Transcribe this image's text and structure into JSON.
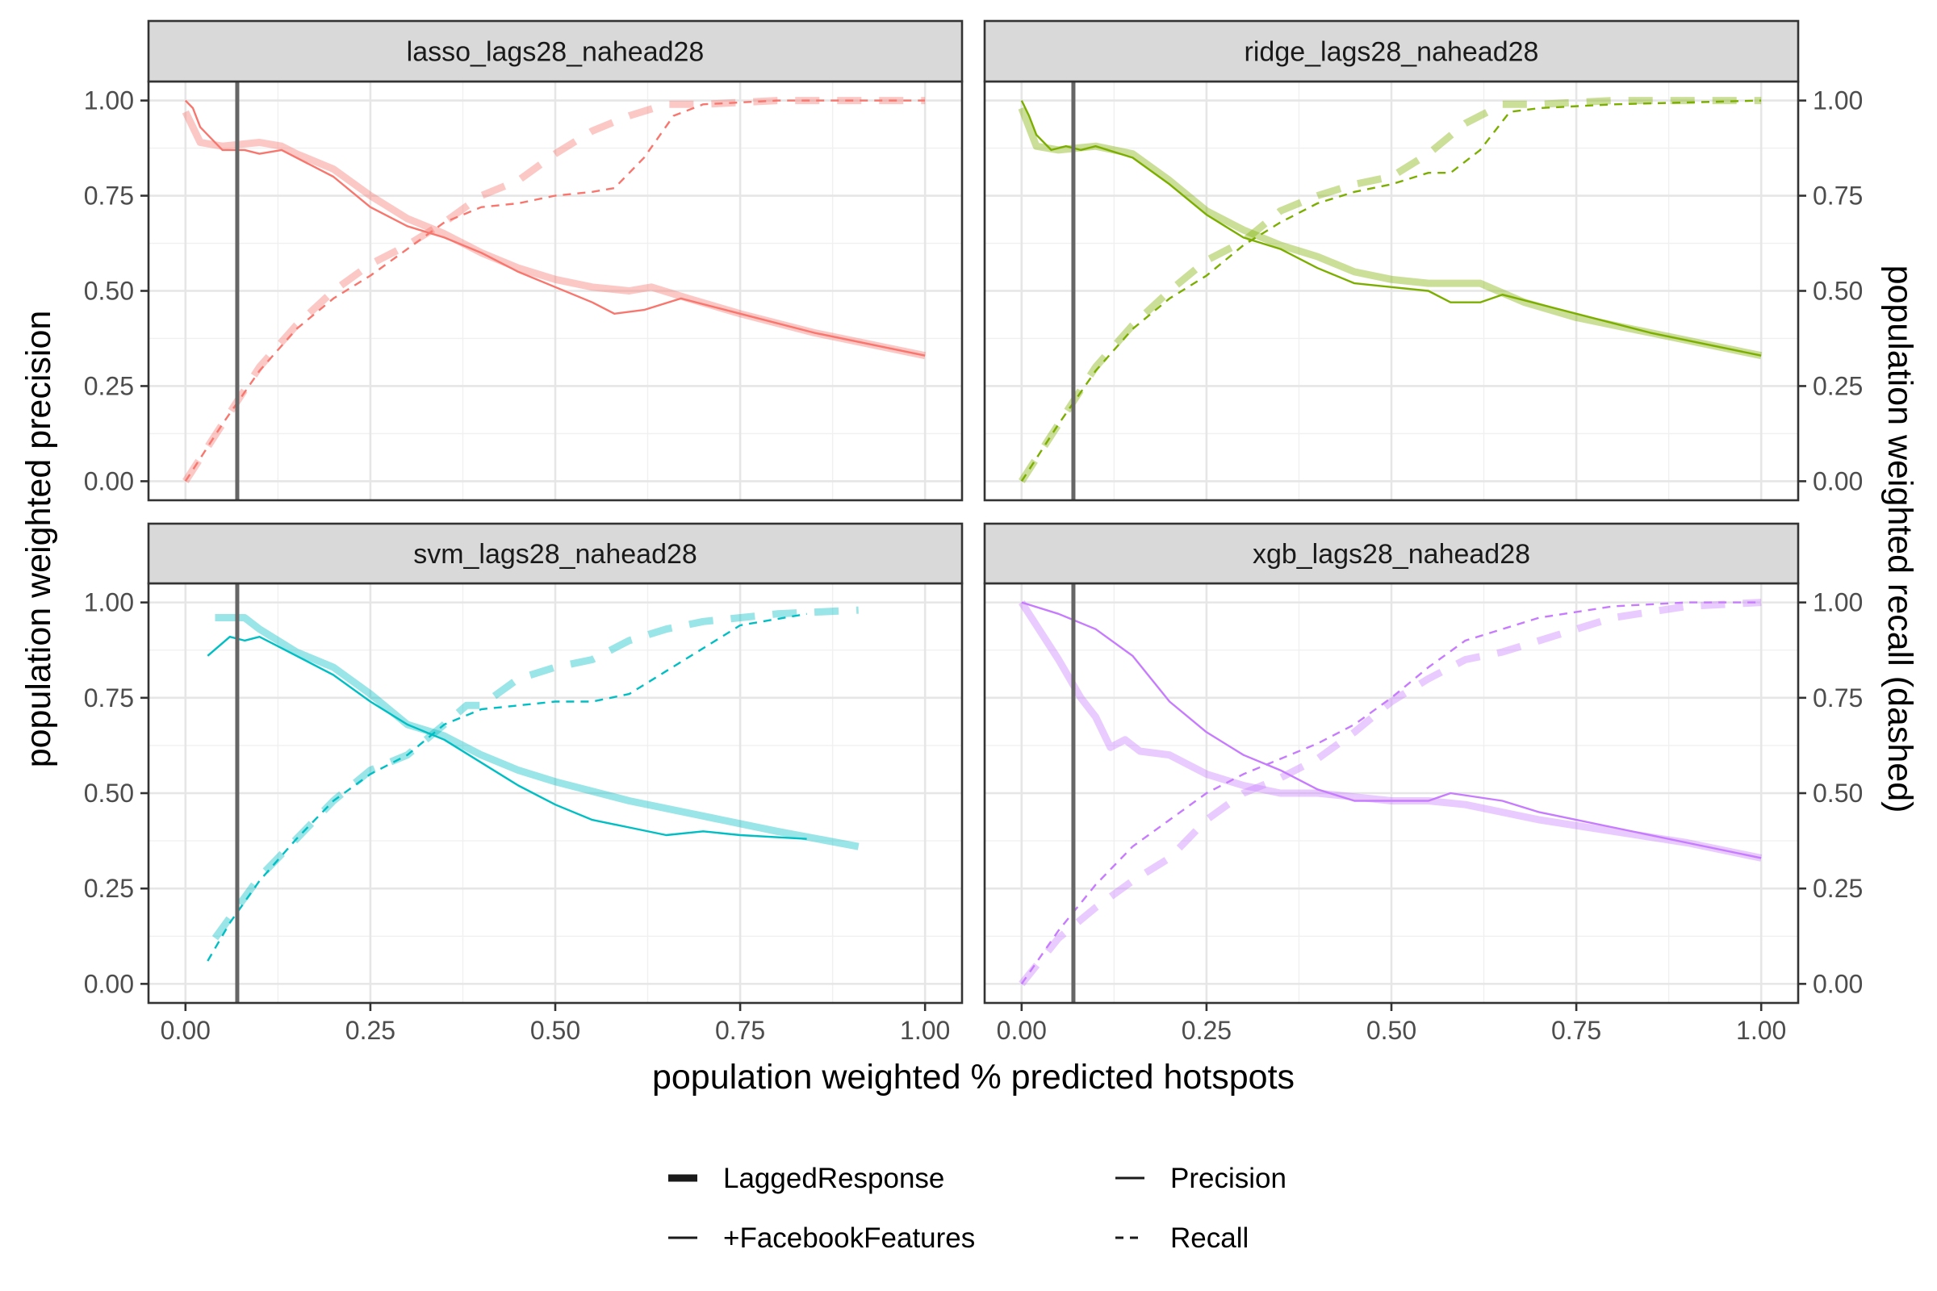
{
  "chart_data": {
    "type": "line",
    "xlabel": "population weighted % predicted hotspots",
    "ylabel": "population weighted precision",
    "ylabel_secondary": "population weighted recall (dashed)",
    "xlim": [
      0,
      1
    ],
    "ylim": [
      0,
      1
    ],
    "x_ticks": [
      "0.00",
      "0.25",
      "0.50",
      "0.75",
      "1.00"
    ],
    "y_ticks": [
      "0.00",
      "0.25",
      "0.50",
      "0.75",
      "1.00"
    ],
    "vertical_reference_x": 0.07,
    "grid": true,
    "legend_position": "bottom",
    "legend": {
      "model": [
        "LaggedResponse",
        "+FacebookFeatures"
      ],
      "metric": [
        "Precision",
        "Recall"
      ]
    },
    "panels": [
      {
        "title": "lasso_lags28_nahead28",
        "color": "#F8766D",
        "series": [
          {
            "name": "LaggedResponse",
            "metric": "Precision",
            "x": [
              0,
              0.01,
              0.02,
              0.05,
              0.1,
              0.13,
              0.15,
              0.2,
              0.25,
              0.3,
              0.35,
              0.4,
              0.45,
              0.5,
              0.55,
              0.6,
              0.63,
              0.68,
              0.75,
              0.85,
              1.0
            ],
            "y": [
              0.97,
              0.93,
              0.89,
              0.88,
              0.89,
              0.88,
              0.86,
              0.82,
              0.75,
              0.69,
              0.65,
              0.6,
              0.56,
              0.53,
              0.51,
              0.5,
              0.51,
              0.48,
              0.44,
              0.39,
              0.33
            ]
          },
          {
            "name": "+FacebookFeatures",
            "metric": "Precision",
            "x": [
              0,
              0.01,
              0.02,
              0.05,
              0.08,
              0.1,
              0.13,
              0.15,
              0.2,
              0.25,
              0.3,
              0.35,
              0.4,
              0.45,
              0.5,
              0.55,
              0.58,
              0.62,
              0.67,
              0.75,
              0.85,
              1.0
            ],
            "y": [
              1.0,
              0.98,
              0.93,
              0.87,
              0.87,
              0.86,
              0.87,
              0.85,
              0.8,
              0.72,
              0.67,
              0.64,
              0.6,
              0.55,
              0.51,
              0.47,
              0.44,
              0.45,
              0.48,
              0.44,
              0.39,
              0.33
            ]
          },
          {
            "name": "LaggedResponse",
            "metric": "Recall",
            "x": [
              0,
              0.05,
              0.1,
              0.15,
              0.2,
              0.25,
              0.3,
              0.35,
              0.4,
              0.45,
              0.5,
              0.55,
              0.6,
              0.65,
              0.7,
              0.8,
              0.9,
              1.0
            ],
            "y": [
              0.0,
              0.15,
              0.3,
              0.41,
              0.5,
              0.57,
              0.62,
              0.68,
              0.75,
              0.79,
              0.86,
              0.92,
              0.96,
              0.99,
              0.99,
              1.0,
              1.0,
              1.0
            ],
            "start_fraction_visible": 0.0
          },
          {
            "name": "+FacebookFeatures",
            "metric": "Recall",
            "x": [
              0,
              0.05,
              0.1,
              0.15,
              0.2,
              0.25,
              0.3,
              0.35,
              0.4,
              0.45,
              0.5,
              0.55,
              0.58,
              0.62,
              0.66,
              0.7,
              0.8,
              0.9,
              1.0
            ],
            "y": [
              0.0,
              0.15,
              0.29,
              0.4,
              0.48,
              0.54,
              0.61,
              0.68,
              0.72,
              0.73,
              0.75,
              0.76,
              0.77,
              0.85,
              0.96,
              0.99,
              1.0,
              1.0,
              1.0
            ]
          }
        ]
      },
      {
        "title": "ridge_lags28_nahead28",
        "color": "#7CAE00",
        "series": [
          {
            "name": "LaggedResponse",
            "metric": "Precision",
            "x": [
              0,
              0.01,
              0.02,
              0.05,
              0.1,
              0.15,
              0.2,
              0.25,
              0.3,
              0.35,
              0.4,
              0.45,
              0.5,
              0.55,
              0.6,
              0.62,
              0.68,
              0.75,
              0.85,
              1.0
            ],
            "y": [
              0.98,
              0.93,
              0.88,
              0.87,
              0.88,
              0.86,
              0.79,
              0.71,
              0.66,
              0.62,
              0.59,
              0.55,
              0.53,
              0.52,
              0.52,
              0.52,
              0.47,
              0.43,
              0.39,
              0.33
            ]
          },
          {
            "name": "+FacebookFeatures",
            "metric": "Precision",
            "x": [
              0,
              0.01,
              0.02,
              0.04,
              0.06,
              0.08,
              0.1,
              0.15,
              0.2,
              0.25,
              0.3,
              0.35,
              0.4,
              0.45,
              0.5,
              0.55,
              0.58,
              0.62,
              0.65,
              0.75,
              0.85,
              1.0
            ],
            "y": [
              1.0,
              0.96,
              0.91,
              0.87,
              0.88,
              0.87,
              0.88,
              0.85,
              0.78,
              0.7,
              0.64,
              0.61,
              0.56,
              0.52,
              0.51,
              0.5,
              0.47,
              0.47,
              0.49,
              0.44,
              0.39,
              0.33
            ]
          },
          {
            "name": "LaggedResponse",
            "metric": "Recall",
            "x": [
              0,
              0.05,
              0.1,
              0.15,
              0.2,
              0.25,
              0.3,
              0.35,
              0.4,
              0.45,
              0.5,
              0.55,
              0.6,
              0.65,
              0.7,
              0.8,
              1.0
            ],
            "y": [
              0.0,
              0.15,
              0.3,
              0.41,
              0.5,
              0.58,
              0.63,
              0.71,
              0.75,
              0.78,
              0.8,
              0.86,
              0.94,
              0.99,
              0.99,
              1.0,
              1.0
            ]
          },
          {
            "name": "+FacebookFeatures",
            "metric": "Recall",
            "x": [
              0,
              0.05,
              0.1,
              0.15,
              0.2,
              0.25,
              0.3,
              0.35,
              0.4,
              0.45,
              0.5,
              0.55,
              0.58,
              0.62,
              0.66,
              0.7,
              0.8,
              1.0
            ],
            "y": [
              0.0,
              0.15,
              0.29,
              0.4,
              0.48,
              0.54,
              0.62,
              0.68,
              0.73,
              0.76,
              0.78,
              0.81,
              0.81,
              0.87,
              0.97,
              0.98,
              0.99,
              1.0
            ]
          }
        ]
      },
      {
        "title": "svm_lags28_nahead28",
        "color": "#00BFC4",
        "series": [
          {
            "name": "LaggedResponse",
            "metric": "Precision",
            "x": [
              0.04,
              0.06,
              0.08,
              0.1,
              0.15,
              0.2,
              0.25,
              0.3,
              0.35,
              0.4,
              0.45,
              0.5,
              0.6,
              0.7,
              0.8,
              0.91
            ],
            "y": [
              0.96,
              0.96,
              0.96,
              0.93,
              0.87,
              0.83,
              0.76,
              0.68,
              0.65,
              0.6,
              0.56,
              0.53,
              0.48,
              0.44,
              0.4,
              0.36
            ]
          },
          {
            "name": "+FacebookFeatures",
            "metric": "Precision",
            "x": [
              0.03,
              0.06,
              0.08,
              0.1,
              0.12,
              0.15,
              0.2,
              0.25,
              0.3,
              0.35,
              0.4,
              0.45,
              0.5,
              0.55,
              0.6,
              0.65,
              0.7,
              0.75,
              0.84
            ],
            "y": [
              0.86,
              0.91,
              0.9,
              0.91,
              0.89,
              0.86,
              0.81,
              0.74,
              0.68,
              0.64,
              0.58,
              0.52,
              0.47,
              0.43,
              0.41,
              0.39,
              0.4,
              0.39,
              0.38
            ]
          },
          {
            "name": "LaggedResponse",
            "metric": "Recall",
            "x": [
              0.04,
              0.07,
              0.1,
              0.15,
              0.2,
              0.25,
              0.3,
              0.35,
              0.38,
              0.4,
              0.45,
              0.5,
              0.55,
              0.6,
              0.65,
              0.7,
              0.8,
              0.91
            ],
            "y": [
              0.12,
              0.2,
              0.28,
              0.38,
              0.48,
              0.56,
              0.6,
              0.68,
              0.73,
              0.73,
              0.8,
              0.83,
              0.85,
              0.9,
              0.93,
              0.95,
              0.97,
              0.98
            ]
          },
          {
            "name": "+FacebookFeatures",
            "metric": "Recall",
            "x": [
              0.03,
              0.06,
              0.1,
              0.15,
              0.2,
              0.25,
              0.3,
              0.35,
              0.4,
              0.45,
              0.5,
              0.55,
              0.6,
              0.65,
              0.7,
              0.75,
              0.84
            ],
            "y": [
              0.06,
              0.16,
              0.27,
              0.38,
              0.48,
              0.55,
              0.6,
              0.68,
              0.72,
              0.73,
              0.74,
              0.74,
              0.76,
              0.82,
              0.88,
              0.94,
              0.97
            ]
          }
        ]
      },
      {
        "title": "xgb_lags28_nahead28",
        "color": "#C77CFF",
        "series": [
          {
            "name": "LaggedResponse",
            "metric": "Precision",
            "x": [
              0,
              0.05,
              0.08,
              0.1,
              0.12,
              0.14,
              0.16,
              0.2,
              0.25,
              0.3,
              0.35,
              0.4,
              0.45,
              0.5,
              0.55,
              0.6,
              0.65,
              0.7,
              0.8,
              0.9,
              1.0
            ],
            "y": [
              1.0,
              0.85,
              0.75,
              0.7,
              0.62,
              0.64,
              0.61,
              0.6,
              0.55,
              0.52,
              0.5,
              0.5,
              0.49,
              0.48,
              0.48,
              0.47,
              0.45,
              0.43,
              0.4,
              0.37,
              0.33
            ]
          },
          {
            "name": "+FacebookFeatures",
            "metric": "Precision",
            "x": [
              0,
              0.05,
              0.1,
              0.15,
              0.2,
              0.25,
              0.3,
              0.35,
              0.4,
              0.45,
              0.5,
              0.55,
              0.58,
              0.65,
              0.7,
              0.8,
              0.9,
              1.0
            ],
            "y": [
              1.0,
              0.97,
              0.93,
              0.86,
              0.74,
              0.66,
              0.6,
              0.56,
              0.51,
              0.48,
              0.48,
              0.48,
              0.5,
              0.48,
              0.45,
              0.41,
              0.37,
              0.33
            ]
          },
          {
            "name": "LaggedResponse",
            "metric": "Recall",
            "x": [
              0,
              0.05,
              0.1,
              0.15,
              0.2,
              0.25,
              0.3,
              0.35,
              0.4,
              0.45,
              0.5,
              0.55,
              0.6,
              0.65,
              0.7,
              0.8,
              0.9,
              1.0
            ],
            "y": [
              0.0,
              0.12,
              0.2,
              0.27,
              0.33,
              0.43,
              0.5,
              0.54,
              0.59,
              0.66,
              0.74,
              0.8,
              0.85,
              0.87,
              0.9,
              0.96,
              0.99,
              1.0
            ]
          },
          {
            "name": "+FacebookFeatures",
            "metric": "Recall",
            "x": [
              0,
              0.05,
              0.1,
              0.15,
              0.2,
              0.25,
              0.3,
              0.35,
              0.4,
              0.45,
              0.5,
              0.55,
              0.6,
              0.65,
              0.7,
              0.8,
              0.9,
              1.0
            ],
            "y": [
              0.0,
              0.14,
              0.26,
              0.36,
              0.43,
              0.5,
              0.55,
              0.59,
              0.63,
              0.68,
              0.75,
              0.83,
              0.9,
              0.93,
              0.96,
              0.99,
              1.0,
              1.0
            ]
          }
        ]
      }
    ]
  }
}
